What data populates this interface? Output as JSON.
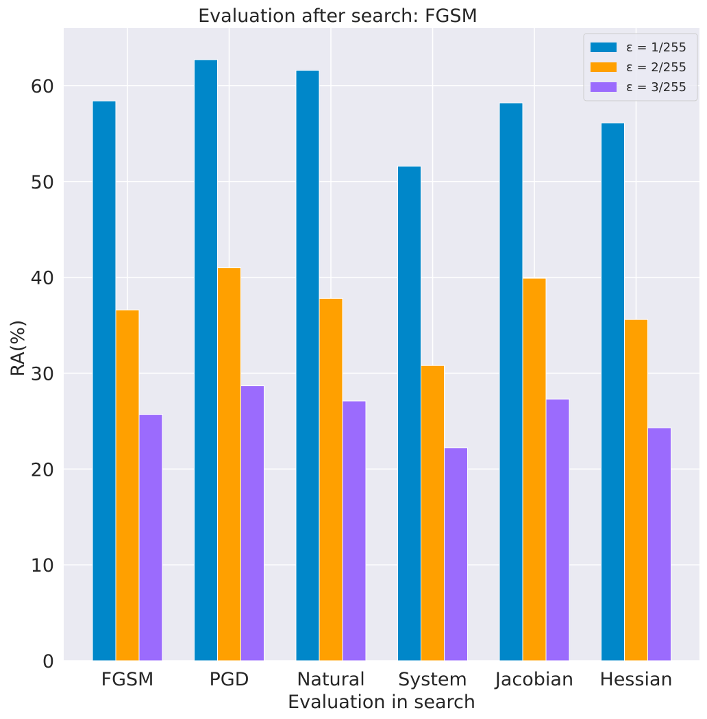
{
  "chart_data": {
    "type": "bar",
    "title": "Evaluation after search: FGSM",
    "xlabel": "Evaluation in search",
    "ylabel": "RA(%)",
    "ylim": [
      0,
      66
    ],
    "yticks": [
      0,
      10,
      20,
      30,
      40,
      50,
      60
    ],
    "grid": true,
    "legend_position": "top-right",
    "categories": [
      "FGSM",
      "PGD",
      "Natural",
      "System",
      "Jacobian",
      "Hessian"
    ],
    "series": [
      {
        "name": "ε = 1/255",
        "color": "#0087c9",
        "values": [
          58.4,
          62.7,
          61.6,
          51.6,
          58.2,
          56.1
        ]
      },
      {
        "name": "ε = 2/255",
        "color": "#ffa000",
        "values": [
          36.6,
          41.0,
          37.8,
          30.8,
          39.9,
          35.6
        ]
      },
      {
        "name": "ε = 3/255",
        "color": "#9b6bfd",
        "values": [
          25.7,
          28.7,
          27.1,
          22.2,
          27.3,
          24.3
        ]
      }
    ]
  }
}
